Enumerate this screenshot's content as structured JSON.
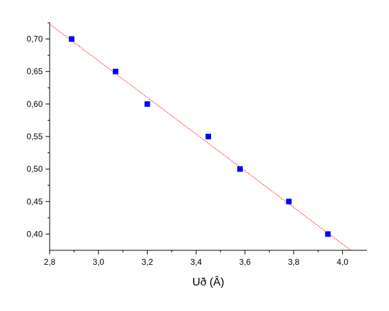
{
  "chart_data": {
    "type": "scatter",
    "title": "",
    "xlabel": "Uð (Â)",
    "ylabel": "",
    "xlim": [
      2.8,
      4.1
    ],
    "ylim": [
      0.375,
      0.725
    ],
    "x_ticks": [
      2.8,
      3.0,
      3.2,
      3.4,
      3.6,
      3.8,
      4.0
    ],
    "x_tick_labels": [
      "2,8",
      "3,0",
      "3,2",
      "3,4",
      "3,6",
      "3,8",
      "4,0"
    ],
    "y_ticks": [
      0.4,
      0.45,
      0.5,
      0.55,
      0.6,
      0.65,
      0.7
    ],
    "y_tick_labels": [
      "0,40",
      "0,45",
      "0,50",
      "0,55",
      "0,60",
      "0,65",
      "0,70"
    ],
    "grid": false,
    "series": [
      {
        "x": [
          2.89,
          3.07,
          3.2,
          3.45,
          3.58,
          3.78,
          3.94
        ],
        "y": [
          0.7,
          0.65,
          0.6,
          0.55,
          0.5,
          0.45,
          0.4
        ],
        "color": "#0000ff",
        "marker": "square"
      }
    ],
    "fit_line": {
      "x": [
        2.8,
        4.03
      ],
      "y": [
        0.723,
        0.376
      ],
      "color": "#ff0000",
      "style": "dotted"
    }
  }
}
